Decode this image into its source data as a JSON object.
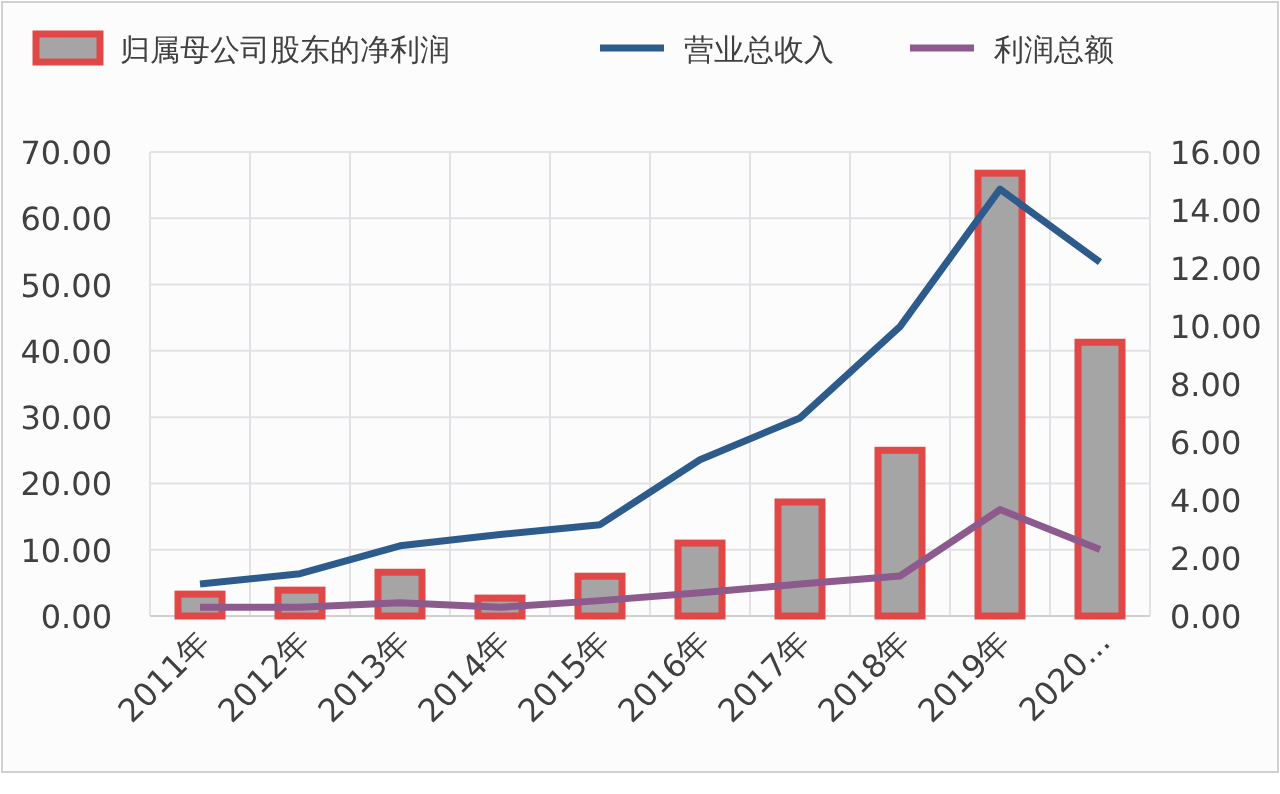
{
  "chart_data": {
    "type": "bar",
    "categories": [
      "2011年",
      "2012年",
      "2013年",
      "2014年",
      "2015年",
      "2016年",
      "2017年",
      "2018年",
      "2019年",
      "2020..."
    ],
    "series": [
      {
        "name": "归属母公司股东的净利润",
        "color": "#a5a5a5",
        "values": [
          3.3,
          3.9,
          6.6,
          2.7,
          6.0,
          11.0,
          17.2,
          25.0,
          66.8,
          41.3
        ]
      },
      {
        "name": "营业总收入",
        "type": "line",
        "axis": "y2",
        "color": "#2d5b8c",
        "values": [
          1.1,
          1.46,
          2.42,
          2.81,
          3.15,
          5.39,
          6.83,
          9.98,
          14.72,
          12.2
        ]
      },
      {
        "name": "利润总额",
        "type": "line",
        "axis": "y2",
        "color": "#8c5a8c",
        "values": [
          0.3,
          0.3,
          0.46,
          0.3,
          0.53,
          0.8,
          1.1,
          1.38,
          3.67,
          2.29
        ]
      }
    ],
    "ylim": [
      0,
      70
    ],
    "yticks": [
      {
        "value": 0,
        "label": "0.00"
      },
      {
        "value": 10,
        "label": "10.00"
      },
      {
        "value": 20,
        "label": "20.00"
      },
      {
        "value": 30,
        "label": "30.00"
      },
      {
        "value": 40,
        "label": "40.00"
      },
      {
        "value": 50,
        "label": "50.00"
      },
      {
        "value": 60,
        "label": "60.00"
      },
      {
        "value": 70,
        "label": "70.00"
      }
    ],
    "y2lim": [
      0,
      16
    ],
    "y2ticks": [
      {
        "value": 0,
        "label": "0.00"
      },
      {
        "value": 2,
        "label": "2.00"
      },
      {
        "value": 4,
        "label": "4.00"
      },
      {
        "value": 6,
        "label": "6.00"
      },
      {
        "value": 8,
        "label": "8.00"
      },
      {
        "value": 10,
        "label": "10.00"
      },
      {
        "value": 12,
        "label": "12.00"
      },
      {
        "value": 14,
        "label": "14.00"
      },
      {
        "value": 16,
        "label": "16.00"
      }
    ],
    "grid": true,
    "legend": "top",
    "marker": "none",
    "line_style": "solid"
  }
}
